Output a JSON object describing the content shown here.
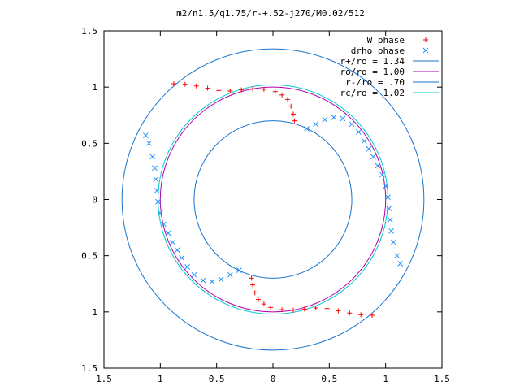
{
  "chart_data": {
    "type": "scatter",
    "title": "m2/n1.5/q1.75/r-+.52-j270/M0.02/512",
    "xlim": [
      -1.5,
      1.5
    ],
    "ylim": [
      -1.5,
      1.5
    ],
    "x_ticks": [
      {
        "value": -1.5,
        "label": "1.5"
      },
      {
        "value": -1.0,
        "label": "1"
      },
      {
        "value": -0.5,
        "label": "0.5"
      },
      {
        "value": 0,
        "label": "0"
      },
      {
        "value": 0.5,
        "label": "0.5"
      },
      {
        "value": 1.0,
        "label": "1"
      },
      {
        "value": 1.5,
        "label": "1.5"
      }
    ],
    "y_ticks": [
      {
        "value": -1.5,
        "label": "1.5"
      },
      {
        "value": -1.0,
        "label": "1"
      },
      {
        "value": -0.5,
        "label": "0.5"
      },
      {
        "value": 0,
        "label": "0"
      },
      {
        "value": 0.5,
        "label": "0.5"
      },
      {
        "value": 1.0,
        "label": "1"
      },
      {
        "value": 1.5,
        "label": "1.5"
      }
    ],
    "legend_position": "top-right",
    "series": [
      {
        "name": "W phase",
        "kind": "points",
        "marker": "+",
        "color": "#ff0000",
        "points": [
          [
            -0.88,
            1.03
          ],
          [
            -0.78,
            1.025
          ],
          [
            -0.68,
            1.01
          ],
          [
            -0.58,
            0.99
          ],
          [
            -0.48,
            0.97
          ],
          [
            -0.38,
            0.965
          ],
          [
            -0.28,
            0.975
          ],
          [
            -0.18,
            0.985
          ],
          [
            -0.08,
            0.98
          ],
          [
            0.02,
            0.96
          ],
          [
            0.08,
            0.93
          ],
          [
            0.13,
            0.89
          ],
          [
            0.16,
            0.83
          ],
          [
            0.18,
            0.76
          ],
          [
            0.19,
            0.7
          ],
          [
            0.88,
            -1.03
          ],
          [
            0.78,
            -1.025
          ],
          [
            0.68,
            -1.01
          ],
          [
            0.58,
            -0.99
          ],
          [
            0.48,
            -0.97
          ],
          [
            0.38,
            -0.965
          ],
          [
            0.28,
            -0.975
          ],
          [
            0.18,
            -0.985
          ],
          [
            0.08,
            -0.98
          ],
          [
            -0.02,
            -0.96
          ],
          [
            -0.08,
            -0.93
          ],
          [
            -0.13,
            -0.89
          ],
          [
            -0.16,
            -0.83
          ],
          [
            -0.18,
            -0.76
          ],
          [
            -0.19,
            -0.7
          ]
        ]
      },
      {
        "name": "drho phase",
        "kind": "points",
        "marker": "x",
        "color": "#1e90ff",
        "points": [
          [
            0.3,
            0.63
          ],
          [
            0.38,
            0.67
          ],
          [
            0.46,
            0.71
          ],
          [
            0.54,
            0.73
          ],
          [
            0.62,
            0.72
          ],
          [
            0.7,
            0.67
          ],
          [
            0.76,
            0.6
          ],
          [
            0.81,
            0.52
          ],
          [
            0.85,
            0.45
          ],
          [
            0.89,
            0.38
          ],
          [
            0.93,
            0.3
          ],
          [
            0.97,
            0.22
          ],
          [
            1.0,
            0.12
          ],
          [
            1.02,
            0.02
          ],
          [
            1.03,
            -0.08
          ],
          [
            1.04,
            -0.18
          ],
          [
            1.05,
            -0.28
          ],
          [
            1.07,
            -0.38
          ],
          [
            1.1,
            -0.5
          ],
          [
            1.13,
            -0.57
          ],
          [
            -0.3,
            -0.63
          ],
          [
            -0.38,
            -0.67
          ],
          [
            -0.46,
            -0.71
          ],
          [
            -0.54,
            -0.73
          ],
          [
            -0.62,
            -0.72
          ],
          [
            -0.7,
            -0.67
          ],
          [
            -0.76,
            -0.6
          ],
          [
            -0.81,
            -0.52
          ],
          [
            -0.85,
            -0.45
          ],
          [
            -0.89,
            -0.38
          ],
          [
            -0.93,
            -0.3
          ],
          [
            -0.97,
            -0.22
          ],
          [
            -1.0,
            -0.12
          ],
          [
            -1.02,
            -0.02
          ],
          [
            -1.03,
            0.08
          ],
          [
            -1.04,
            0.18
          ],
          [
            -1.05,
            0.28
          ],
          [
            -1.07,
            0.38
          ],
          [
            -1.1,
            0.5
          ],
          [
            -1.13,
            0.57
          ]
        ]
      },
      {
        "name": "r+/ro = 1.34",
        "kind": "circle",
        "radius": 1.34,
        "color": "#1874cd"
      },
      {
        "name": "ro/ro = 1.00",
        "kind": "circle",
        "radius": 1.0,
        "color": "#b000b0"
      },
      {
        "name": "r-/ro = .70",
        "kind": "circle",
        "radius": 0.7,
        "color": "#1874cd"
      },
      {
        "name": "rc/ro = 1.02",
        "kind": "circle",
        "radius": 1.02,
        "color": "#00cccc"
      }
    ]
  }
}
